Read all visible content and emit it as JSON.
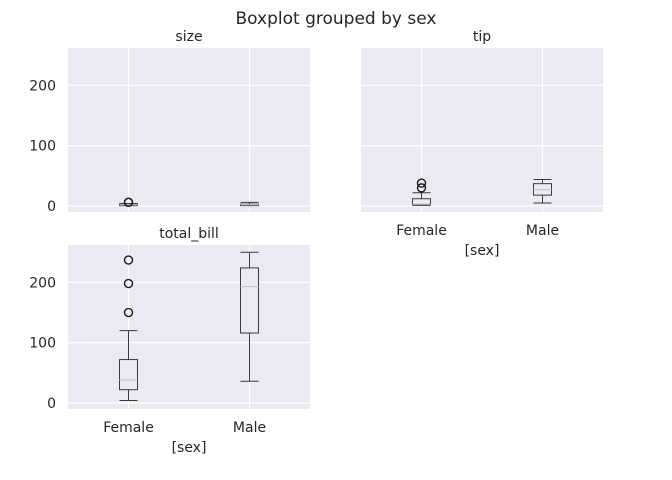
{
  "suptitle": "Boxplot grouped by sex",
  "chart_data": [
    {
      "type": "box",
      "title": "size",
      "xlabel": "",
      "categories": [
        "Female",
        "Male"
      ],
      "show_xticklabels": false,
      "ylim": [
        -10,
        262
      ],
      "yticks": [
        0,
        100,
        200
      ],
      "grid": true,
      "boxes": [
        {
          "min": 1,
          "q1": 2,
          "median": 2,
          "q3": 3,
          "max": 4,
          "fliers": [
            6,
            6
          ]
        },
        {
          "min": 1,
          "q1": 2,
          "median": 2,
          "q3": 3,
          "max": 6,
          "fliers": []
        }
      ]
    },
    {
      "type": "box",
      "title": "tip",
      "xlabel": "[sex]",
      "categories": [
        "Female",
        "Male"
      ],
      "show_xticklabels": true,
      "ylim": [
        -10,
        262
      ],
      "yticks": [
        0,
        100,
        200
      ],
      "grid": true,
      "boxes": [
        {
          "min": 1,
          "q1": 2,
          "median": 3,
          "q3": 12,
          "max": 22,
          "fliers": [
            30,
            38
          ]
        },
        {
          "min": 5,
          "q1": 18,
          "median": 27,
          "q3": 37,
          "max": 44,
          "fliers": []
        }
      ]
    },
    {
      "type": "box",
      "title": "total_bill",
      "xlabel": "[sex]",
      "categories": [
        "Female",
        "Male"
      ],
      "show_xticklabels": true,
      "ylim": [
        -10,
        262
      ],
      "yticks": [
        0,
        100,
        200
      ],
      "grid": true,
      "boxes": [
        {
          "min": 4,
          "q1": 22,
          "median": 38,
          "q3": 72,
          "max": 120,
          "fliers": [
            150,
            198,
            237
          ]
        },
        {
          "min": 36,
          "q1": 116,
          "median": 193,
          "q3": 224,
          "max": 250,
          "fliers": []
        }
      ]
    }
  ]
}
